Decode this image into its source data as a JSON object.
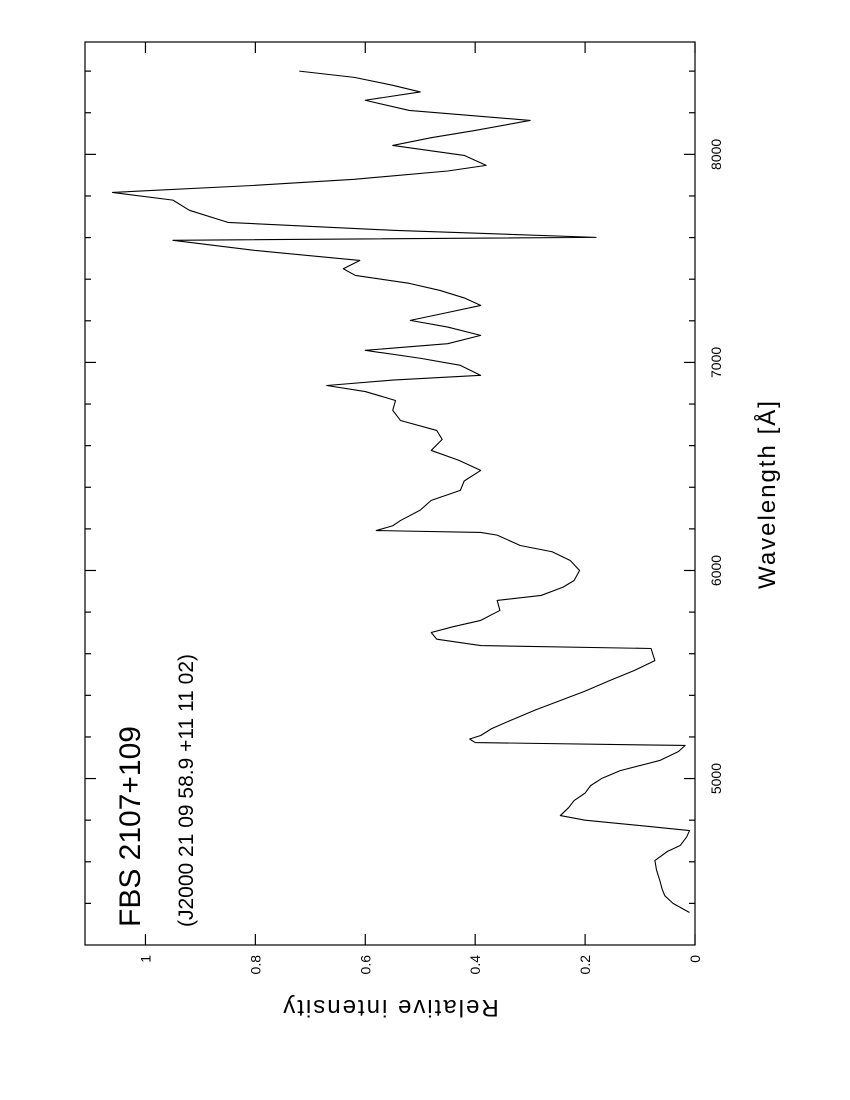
{
  "chart_data": {
    "type": "line",
    "title": "FBS 2107+109",
    "subtitle": "(J2000 21 09 58.9 +11 11 02)",
    "x_label": "Wavelength   [Å]",
    "y_label": "Relative intensity",
    "xlim": [
      4200,
      8540
    ],
    "xticks": [
      5000,
      6000,
      7000,
      8000
    ],
    "xminorticks": [
      4400,
      4600,
      4800,
      5200,
      5400,
      5600,
      5800,
      6200,
      6400,
      6600,
      6800,
      7200,
      7400,
      7600,
      7800,
      8200,
      8400
    ],
    "ylim": [
      0,
      1.11
    ],
    "yticks": [
      0,
      0.2,
      0.4,
      0.6,
      0.8,
      1
    ],
    "color": "#000000",
    "x": [
      4356,
      4400,
      4437,
      4470,
      4510,
      4560,
      4606,
      4650,
      4678,
      4720,
      4750,
      4774,
      4800,
      4822,
      4860,
      4894,
      4930,
      4966,
      5000,
      5038,
      5087,
      5130,
      5159,
      5173,
      5190,
      5207,
      5240,
      5279,
      5330,
      5375,
      5420,
      5471,
      5520,
      5567,
      5625,
      5639,
      5670,
      5702,
      5730,
      5760,
      5808,
      5856,
      5880,
      5920,
      5952,
      6000,
      6048,
      6090,
      6120,
      6170,
      6183,
      6192,
      6215,
      6240,
      6290,
      6337,
      6385,
      6430,
      6481,
      6530,
      6577,
      6630,
      6673,
      6721,
      6770,
      6817,
      6860,
      6889,
      6915,
      6938,
      6986,
      7020,
      7058,
      7090,
      7130,
      7170,
      7202,
      7240,
      7274,
      7310,
      7346,
      7380,
      7418,
      7450,
      7490,
      7538,
      7587,
      7601,
      7635,
      7673,
      7731,
      7780,
      7817,
      7851,
      7880,
      7920,
      7947,
      7995,
      8043,
      8080,
      8115,
      8163,
      8211,
      8260,
      8300,
      8332,
      8370,
      8400
    ],
    "values": [
      0.01,
      0.04,
      0.055,
      0.06,
      0.064,
      0.07,
      0.073,
      0.05,
      0.027,
      0.015,
      0.01,
      0.1,
      0.2,
      0.245,
      0.23,
      0.22,
      0.2,
      0.19,
      0.17,
      0.136,
      0.064,
      0.03,
      0.018,
      0.4,
      0.41,
      0.39,
      0.37,
      0.336,
      0.29,
      0.245,
      0.2,
      0.155,
      0.11,
      0.073,
      0.08,
      0.39,
      0.47,
      0.48,
      0.44,
      0.39,
      0.355,
      0.36,
      0.28,
      0.24,
      0.22,
      0.21,
      0.227,
      0.26,
      0.318,
      0.36,
      0.39,
      0.58,
      0.55,
      0.536,
      0.5,
      0.48,
      0.427,
      0.42,
      0.39,
      0.43,
      0.48,
      0.46,
      0.47,
      0.536,
      0.55,
      0.545,
      0.6,
      0.67,
      0.55,
      0.39,
      0.427,
      0.5,
      0.6,
      0.45,
      0.39,
      0.45,
      0.518,
      0.45,
      0.39,
      0.42,
      0.464,
      0.52,
      0.618,
      0.64,
      0.61,
      0.8,
      0.95,
      0.18,
      0.55,
      0.85,
      0.92,
      0.95,
      1.06,
      0.8,
      0.62,
      0.45,
      0.38,
      0.42,
      0.55,
      0.48,
      0.4,
      0.3,
      0.52,
      0.6,
      0.5,
      0.55,
      0.62,
      0.72
    ]
  }
}
